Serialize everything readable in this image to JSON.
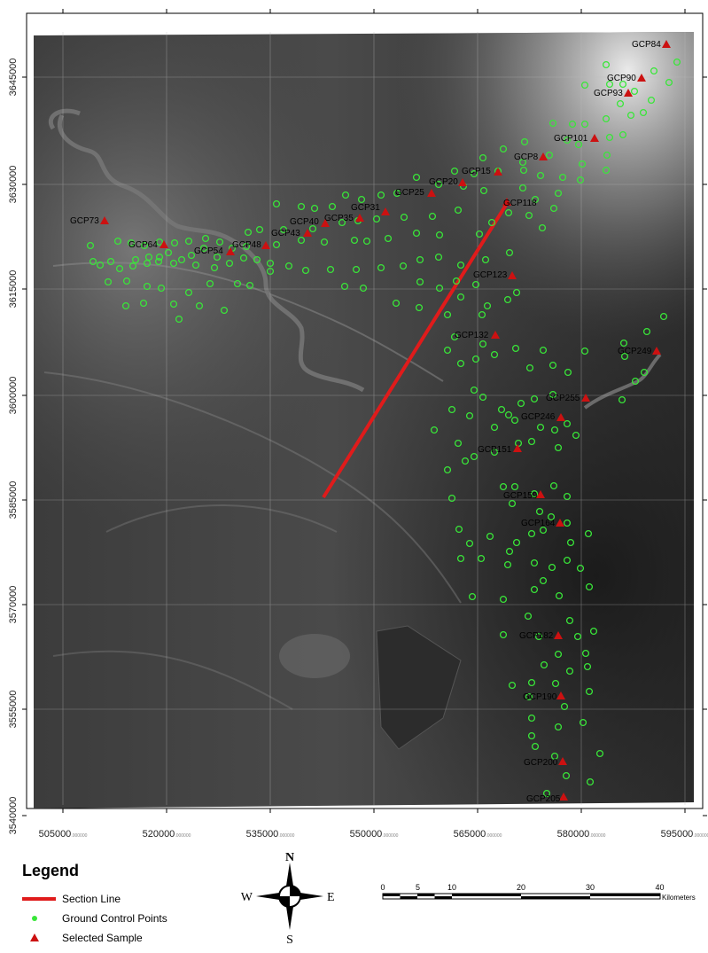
{
  "map": {
    "x_ticks": [
      "505000",
      "520000",
      "535000",
      "550000",
      "565000",
      "580000",
      "595000"
    ],
    "y_ticks": [
      "3645000",
      "3630000",
      "3615000",
      "3600000",
      "3585000",
      "3570000",
      "3555000",
      "3540000"
    ],
    "tick_suffix": ".000000"
  },
  "control_point_labels": [
    {
      "label": "GCP84"
    },
    {
      "label": "GCP90"
    },
    {
      "label": "GCP93"
    },
    {
      "label": "GCP101"
    },
    {
      "label": "GCP8"
    },
    {
      "label": "GCP15"
    },
    {
      "label": "GCP20"
    },
    {
      "label": "GCP25"
    },
    {
      "label": "GCP118"
    },
    {
      "label": "GCP31"
    },
    {
      "label": "GCP35"
    },
    {
      "label": "GCP40"
    },
    {
      "label": "GCP43"
    },
    {
      "label": "GCP48"
    },
    {
      "label": "GCP54"
    },
    {
      "label": "GCP64"
    },
    {
      "label": "GCP73"
    },
    {
      "label": "GCP123"
    },
    {
      "label": "GCP132"
    },
    {
      "label": "GCP249"
    },
    {
      "label": "GCP255"
    },
    {
      "label": "GCP246"
    },
    {
      "label": "GCP151"
    },
    {
      "label": "GCP159"
    },
    {
      "label": "GCP164"
    },
    {
      "label": "GCP182"
    },
    {
      "label": "GCP190"
    },
    {
      "label": "GCP200"
    },
    {
      "label": "GCP205"
    }
  ],
  "legend": {
    "title": "Legend",
    "items": [
      {
        "label": "Section Line",
        "color": "#e01b1b"
      },
      {
        "label": "Ground Control Points",
        "color": "#39e639"
      },
      {
        "label": "Selected Sample",
        "color": "#cc1111"
      }
    ]
  },
  "north_arrow": {
    "n": "N",
    "s": "S",
    "e": "E",
    "w": "W"
  },
  "scale_bar": {
    "ticks": [
      "0",
      "5",
      "10",
      "20",
      "30",
      "40"
    ],
    "unit": "Kilometers"
  }
}
